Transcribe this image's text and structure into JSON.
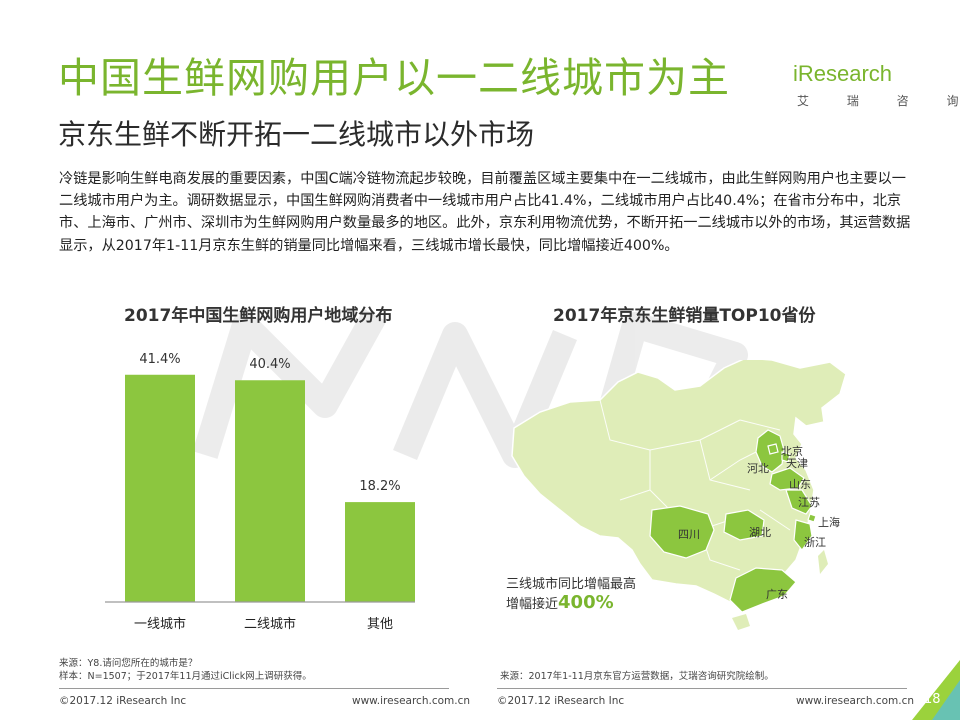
{
  "header": {
    "title": "中国生鲜网购用户以一二线城市为主",
    "subtitle": "京东生鲜不断开拓一二线城市以外市场"
  },
  "logo": {
    "word": "iResearch",
    "sub": "艾 瑞 咨 询"
  },
  "body_text": "冷链是影响生鲜电商发展的重要因素，中国C端冷链物流起步较晚，目前覆盖区域主要集中在一二线城市，由此生鲜网购用户也主要以一二线城市用户为主。调研数据显示，中国生鲜网购消费者中一线城市用户占比41.4%，二线城市用户占比40.4%；在省市分布中，北京市、上海市、广州市、深圳市为生鲜网购用户数量最多的地区。此外，京东利用物流优势，不断开拓一二线城市以外的市场，其运营数据显示，从2017年1-11月京东生鲜的销量同比增幅来看，三线城市增长最快，同比增幅接近400%。",
  "chart_data": [
    {
      "type": "bar",
      "title": "2017年中国生鲜网购用户地域分布",
      "categories": [
        "一线城市",
        "二线城市",
        "其他"
      ],
      "values": [
        41.4,
        40.4,
        18.2
      ],
      "value_labels": [
        "41.4%",
        "40.4%",
        "18.2%"
      ],
      "ylim": [
        0,
        45
      ],
      "bar_color": "#8cc63f",
      "grid": false
    },
    {
      "type": "map",
      "title": "2017年京东生鲜销量TOP10省份",
      "highlighted_provinces": [
        "北京",
        "天津",
        "河北",
        "山东",
        "江苏",
        "上海",
        "浙江",
        "湖北",
        "四川",
        "广东"
      ],
      "base_color": "#dfedb8",
      "highlight_color": "#8cc63f",
      "note_text": "三线城市同比增幅最高",
      "note_prefix": "增幅接近",
      "note_highlight": "400%"
    }
  ],
  "sources": {
    "left_line1": "来源：Y8.请问您所在的城市是？",
    "left_line2": "样本：N=1507；于2017年11月通过iClick网上调研获得。",
    "right": "来源：2017年1-11月京东官方运营数据，艾瑞咨询研究院绘制。"
  },
  "footer": {
    "copyright_left": "©2017.12 iResearch Inc",
    "url_left": "www.iresearch.com.cn",
    "copyright_right": "©2017.12 iResearch Inc",
    "url_right": "www.iresearch.com.cn",
    "page_number": "18"
  },
  "colors": {
    "accent": "#7ab52e",
    "bar": "#8cc63f",
    "map_base": "#dfedb8",
    "map_border": "#ffffff"
  }
}
